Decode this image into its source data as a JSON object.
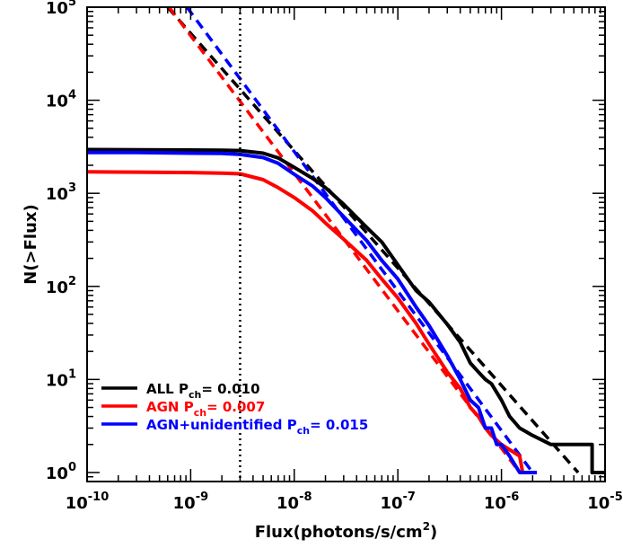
{
  "chart_data": {
    "type": "line",
    "title": "",
    "xlabel": "Flux(photons/s/cm",
    "xlabel_sup": "2",
    "xlabel_tail": ")",
    "ylabel": "N(>Flux)",
    "x_scale": "log",
    "y_scale": "log",
    "xlim": [
      1e-10,
      1e-05
    ],
    "ylim": [
      0.8,
      100000
    ],
    "x_ticks": [
      {
        "value": 1e-10,
        "base": "10",
        "exp": "-10"
      },
      {
        "value": 1e-09,
        "base": "10",
        "exp": "-9"
      },
      {
        "value": 1e-08,
        "base": "10",
        "exp": "-8"
      },
      {
        "value": 1e-07,
        "base": "10",
        "exp": "-7"
      },
      {
        "value": 1e-06,
        "base": "10",
        "exp": "-6"
      },
      {
        "value": 1e-05,
        "base": "10",
        "exp": "-5"
      }
    ],
    "y_ticks": [
      {
        "value": 1,
        "base": "10",
        "exp": "0"
      },
      {
        "value": 10,
        "base": "10",
        "exp": "1"
      },
      {
        "value": 100,
        "base": "10",
        "exp": "2"
      },
      {
        "value": 1000,
        "base": "10",
        "exp": "3"
      },
      {
        "value": 10000,
        "base": "10",
        "exp": "4"
      },
      {
        "value": 100000,
        "base": "10",
        "exp": "5"
      }
    ],
    "threshold_line": {
      "x": 3e-09,
      "style": "dotted",
      "color": "#000000"
    },
    "grid": false,
    "legend_position": "bottom-left",
    "series": [
      {
        "name": "ALL",
        "legend_sub": "ch",
        "legend_value": "= 0.010",
        "color": "#000000",
        "points": [
          [
            1e-10,
            2950
          ],
          [
            3e-10,
            2940
          ],
          [
            1e-09,
            2920
          ],
          [
            2e-09,
            2900
          ],
          [
            3e-09,
            2880
          ],
          [
            5e-09,
            2700
          ],
          [
            7e-09,
            2400
          ],
          [
            1e-08,
            1900
          ],
          [
            1.5e-08,
            1450
          ],
          [
            2e-08,
            1150
          ],
          [
            3e-08,
            760
          ],
          [
            5e-08,
            430
          ],
          [
            7e-08,
            300
          ],
          [
            1e-07,
            170
          ],
          [
            1.5e-07,
            90
          ],
          [
            2e-07,
            68
          ],
          [
            3e-07,
            39
          ],
          [
            4e-07,
            25
          ],
          [
            5e-07,
            15
          ],
          [
            6e-07,
            12
          ],
          [
            7e-07,
            10
          ],
          [
            8e-07,
            9
          ],
          [
            1e-06,
            6
          ],
          [
            1.2e-06,
            4
          ],
          [
            1.5e-06,
            3
          ],
          [
            2e-06,
            2.5
          ],
          [
            3e-06,
            2
          ],
          [
            5e-06,
            2
          ],
          [
            7.5e-06,
            2
          ],
          [
            7.5e-06,
            1
          ],
          [
            1e-05,
            1
          ]
        ]
      },
      {
        "name": "AGN",
        "legend_sub": "ch",
        "legend_value": "= 0.007",
        "color": "#ff0000",
        "points": [
          [
            1e-10,
            1700
          ],
          [
            3e-10,
            1690
          ],
          [
            1e-09,
            1670
          ],
          [
            2e-09,
            1650
          ],
          [
            3e-09,
            1620
          ],
          [
            5e-09,
            1400
          ],
          [
            7e-09,
            1150
          ],
          [
            1e-08,
            900
          ],
          [
            1.5e-08,
            650
          ],
          [
            2e-08,
            480
          ],
          [
            3e-08,
            320
          ],
          [
            5e-08,
            190
          ],
          [
            7e-08,
            120
          ],
          [
            1e-07,
            75
          ],
          [
            1.5e-07,
            40
          ],
          [
            2e-07,
            24
          ],
          [
            3e-07,
            12
          ],
          [
            4e-07,
            8
          ],
          [
            5e-07,
            5
          ],
          [
            6e-07,
            4
          ],
          [
            7e-07,
            3
          ],
          [
            8e-07,
            2.5
          ],
          [
            1e-06,
            2
          ],
          [
            1.5e-06,
            1.5
          ],
          [
            1.6e-06,
            1
          ]
        ]
      },
      {
        "name": "AGN+unidentified",
        "legend_sub": "ch",
        "legend_value": "= 0.015",
        "color": "#0000ff",
        "points": [
          [
            1e-10,
            2750
          ],
          [
            3e-10,
            2740
          ],
          [
            1e-09,
            2700
          ],
          [
            2e-09,
            2680
          ],
          [
            3e-09,
            2620
          ],
          [
            5e-09,
            2420
          ],
          [
            7e-09,
            2100
          ],
          [
            1e-08,
            1600
          ],
          [
            1.5e-08,
            1200
          ],
          [
            2e-08,
            900
          ],
          [
            3e-08,
            560
          ],
          [
            5e-08,
            310
          ],
          [
            7e-08,
            190
          ],
          [
            1e-07,
            120
          ],
          [
            1.5e-07,
            60
          ],
          [
            2e-07,
            38
          ],
          [
            3e-07,
            18
          ],
          [
            4e-07,
            10
          ],
          [
            5e-07,
            6
          ],
          [
            6e-07,
            5
          ],
          [
            7e-07,
            3
          ],
          [
            8e-07,
            3
          ],
          [
            9e-07,
            2
          ],
          [
            1e-06,
            2
          ],
          [
            1.2e-06,
            1.5
          ],
          [
            1.5e-06,
            1
          ],
          [
            2.2e-06,
            1
          ]
        ]
      }
    ],
    "fits": [
      {
        "color": "#000000",
        "dashed": true,
        "points": [
          [
            6e-10,
            100000
          ],
          [
            5.5e-06,
            1
          ]
        ]
      },
      {
        "color": "#ff0000",
        "dashed": true,
        "points": [
          [
            6.2e-10,
            100000
          ],
          [
            1.5e-06,
            1
          ]
        ]
      },
      {
        "color": "#0000ff",
        "dashed": true,
        "points": [
          [
            9.2e-10,
            100000
          ],
          [
            2e-06,
            1
          ]
        ]
      }
    ]
  }
}
